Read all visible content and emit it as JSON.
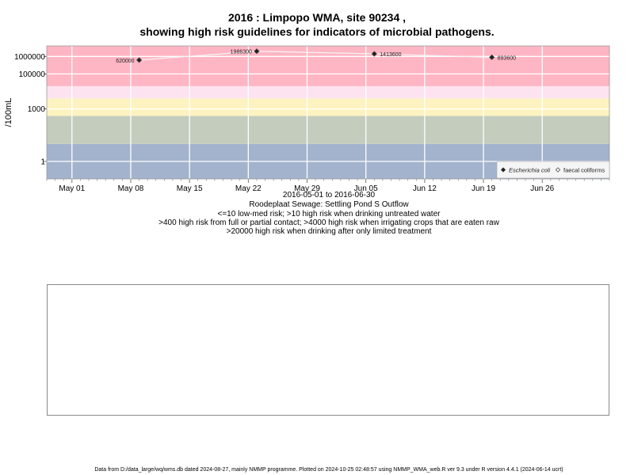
{
  "title_line1": "2016 : Limpopo WMA, site 90234 ,",
  "title_line2": "showing high risk guidelines for indicators of microbial pathogens.",
  "captions": [
    "2016-05-01 to 2016-06-30",
    "Roodeplaat Sewage: Settling Pond S Outflow",
    "<=10 low-med risk; >10 high risk when drinking untreated water",
    ">400 high risk from full or partial contact; >4000 high risk when irrigating crops that are eaten raw",
    ">20000 high risk when drinking after only limited treatment"
  ],
  "footer": "Data from D:/data_large/wq/wms.db dated 2024-08-27, mainly NMMP programme. Plotted on 2024-10-25 02:48:57 using NMMP_WMA_web.R ver 9.3 under R version 4.4.1 (2024-06-14 ucrt)",
  "chart_data": {
    "type": "line",
    "ylabel": "/100mL",
    "y_scale": "log10",
    "ylim": [
      0.1,
      4000000
    ],
    "xlim": [
      "2016-04-28",
      "2016-07-04"
    ],
    "x_ticks": [
      {
        "date": "2016-05-01",
        "label": "May 01"
      },
      {
        "date": "2016-05-08",
        "label": "May 08"
      },
      {
        "date": "2016-05-15",
        "label": "May 15"
      },
      {
        "date": "2016-05-22",
        "label": "May 22"
      },
      {
        "date": "2016-05-29",
        "label": "May 29"
      },
      {
        "date": "2016-06-05",
        "label": "Jun 05"
      },
      {
        "date": "2016-06-12",
        "label": "Jun 12"
      },
      {
        "date": "2016-06-19",
        "label": "Jun 19"
      },
      {
        "date": "2016-06-26",
        "label": "Jun 26"
      }
    ],
    "y_ticks": [
      {
        "value": 1,
        "label": "1"
      },
      {
        "value": 1000,
        "label": "1000"
      },
      {
        "value": 100000,
        "label": "100000"
      },
      {
        "value": 1000000,
        "label": "1000000"
      }
    ],
    "bands": [
      {
        "from": 0.1,
        "to": 10,
        "color": "#a3b3cd"
      },
      {
        "from": 10,
        "to": 400,
        "color": "#c3ccbd"
      },
      {
        "from": 400,
        "to": 4000,
        "color": "#fdf3c0"
      },
      {
        "from": 4000,
        "to": 20000,
        "color": "#fde3ef"
      },
      {
        "from": 20000,
        "to": 4000000,
        "color": "#ffb6c4"
      }
    ],
    "series": [
      {
        "name": "Escherichia coli",
        "color": "#000000",
        "points": [
          {
            "date": "2016-05-09",
            "value": 620000,
            "label": "620000"
          },
          {
            "date": "2016-05-23",
            "value": 1986300,
            "label": "1986300"
          },
          {
            "date": "2016-06-06",
            "value": 1413600,
            "label": "1413600"
          },
          {
            "date": "2016-06-20",
            "value": 893600,
            "label": "893600"
          }
        ]
      }
    ],
    "legend": {
      "position": "bottom-right",
      "entries": [
        {
          "label": "Escherichia coli",
          "italic": true,
          "marker": "filled-diamond"
        },
        {
          "label": "faecal coliforms",
          "italic": false,
          "marker": "open-diamond"
        }
      ]
    },
    "grid": true
  }
}
